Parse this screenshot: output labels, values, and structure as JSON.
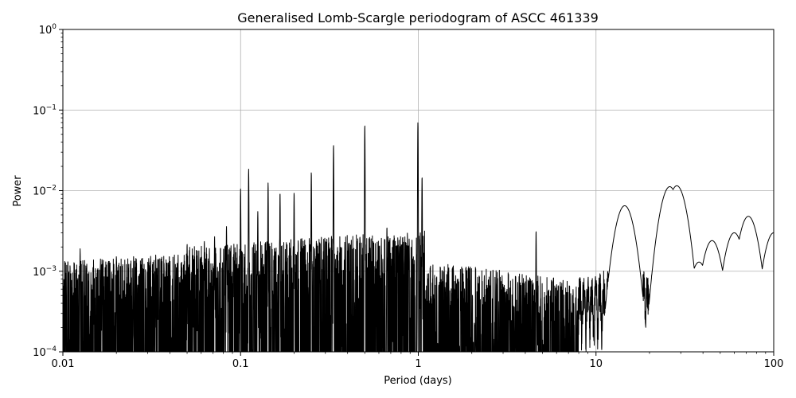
{
  "chart_data": {
    "type": "line",
    "title": "Generalised Lomb-Scargle periodogram of ASCC 461339",
    "xlabel": "Period (days)",
    "ylabel": "Power",
    "xscale": "log",
    "yscale": "log",
    "xlim": [
      0.01,
      100
    ],
    "ylim": [
      0.0001,
      1
    ],
    "grid": "major",
    "line_color": "#000000",
    "x_ticks": [
      {
        "value": 0.01,
        "label": "0.01"
      },
      {
        "value": 0.1,
        "label": "0.1"
      },
      {
        "value": 1,
        "label": "1"
      },
      {
        "value": 10,
        "label": "10"
      },
      {
        "value": 100,
        "label": "100"
      }
    ],
    "y_ticks": [
      {
        "value": 0.0001,
        "base": "10",
        "exp": "−4"
      },
      {
        "value": 0.001,
        "base": "10",
        "exp": "−3"
      },
      {
        "value": 0.01,
        "base": "10",
        "exp": "−2"
      },
      {
        "value": 0.1,
        "base": "10",
        "exp": "−1"
      },
      {
        "value": 1,
        "base": "10",
        "exp": "0"
      }
    ],
    "peaks": [
      {
        "period": 0.0125,
        "power": 0.0019
      },
      {
        "period": 0.0166,
        "power": 0.0014
      },
      {
        "period": 0.02,
        "power": 0.00155
      },
      {
        "period": 0.025,
        "power": 0.00155
      },
      {
        "period": 0.0333,
        "power": 0.0016
      },
      {
        "period": 0.05,
        "power": 0.0022
      },
      {
        "period": 0.0625,
        "power": 0.0024
      },
      {
        "period": 0.0714,
        "power": 0.0027
      },
      {
        "period": 0.0833,
        "power": 0.0036
      },
      {
        "period": 0.1,
        "power": 0.0105
      },
      {
        "period": 0.111,
        "power": 0.0185
      },
      {
        "period": 0.125,
        "power": 0.0055
      },
      {
        "period": 0.1428,
        "power": 0.0125
      },
      {
        "period": 0.1667,
        "power": 0.0095
      },
      {
        "period": 0.2,
        "power": 0.0095
      },
      {
        "period": 0.25,
        "power": 0.017
      },
      {
        "period": 0.3333,
        "power": 0.037
      },
      {
        "period": 0.5,
        "power": 0.065
      },
      {
        "period": 0.666,
        "power": 0.0036
      },
      {
        "period": 0.995,
        "power": 0.07
      },
      {
        "period": 1.05,
        "power": 0.015
      },
      {
        "period": 4.6,
        "power": 0.0032
      },
      {
        "period": 14.5,
        "power": 0.0065
      },
      {
        "period": 26.0,
        "power": 0.0112
      },
      {
        "period": 28.5,
        "power": 0.0115
      },
      {
        "period": 38.0,
        "power": 0.0013
      },
      {
        "period": 45.0,
        "power": 0.0024
      },
      {
        "period": 60.0,
        "power": 0.003
      },
      {
        "period": 72.0,
        "power": 0.0048
      },
      {
        "period": 100.0,
        "power": 0.003
      }
    ]
  }
}
